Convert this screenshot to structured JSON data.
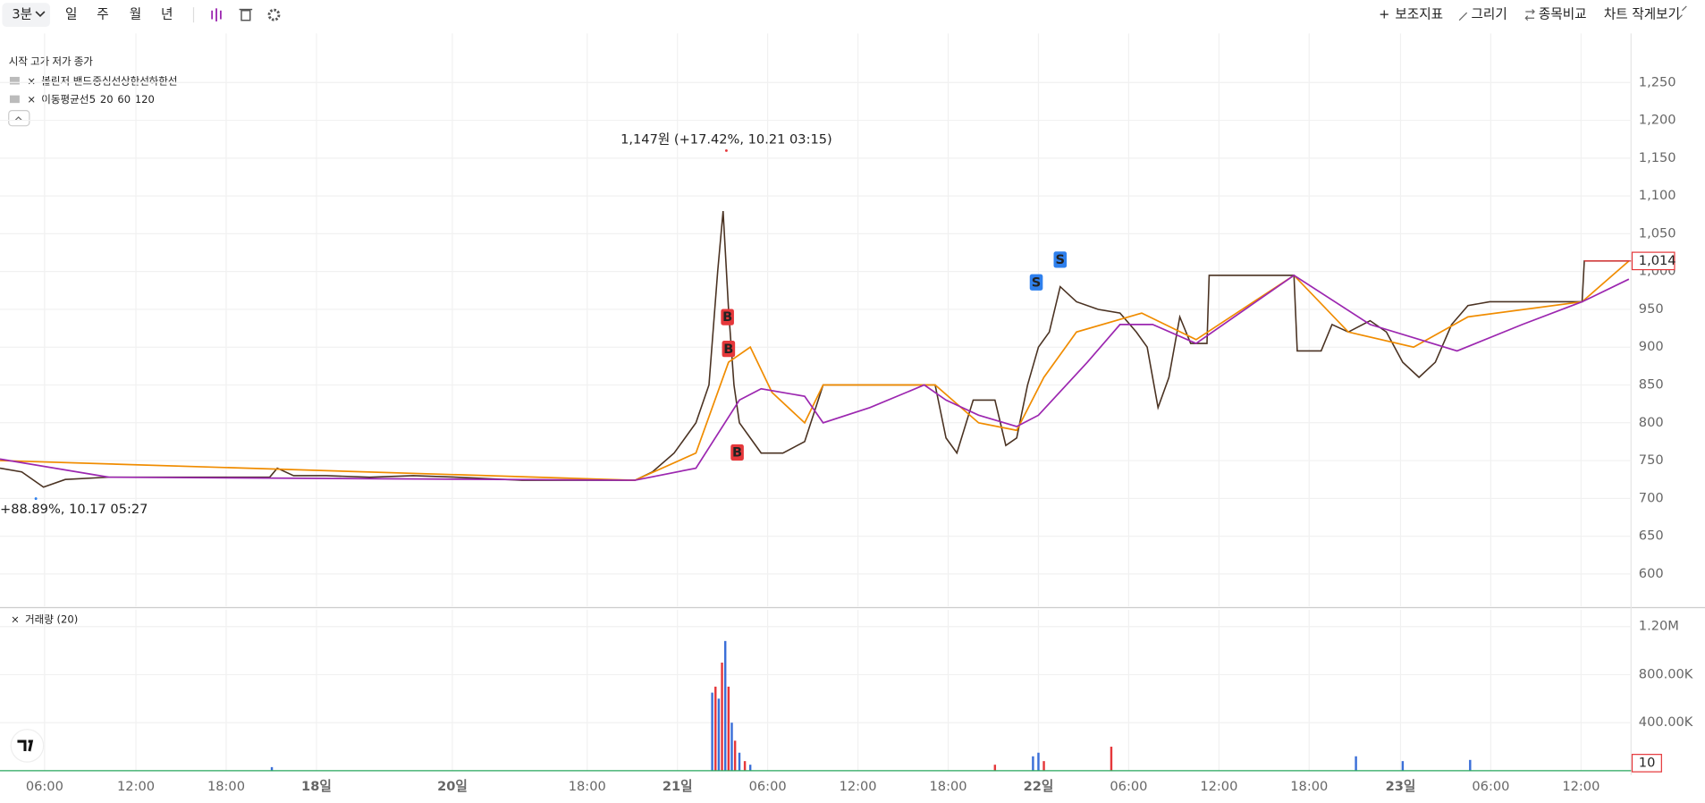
{
  "toolbar": {
    "interval": "3분",
    "periods": [
      "일",
      "주",
      "월",
      "년"
    ],
    "actions": [
      "보조지표",
      "그리기",
      "종목비교",
      "차트 작게보기"
    ]
  },
  "legend": {
    "ohlc": [
      "시작",
      "고가",
      "저가",
      "종가"
    ],
    "bollinger": {
      "name": "볼린저 밴드",
      "items": [
        "중심선",
        "상한선",
        "하한선"
      ],
      "colors": [
        "#26a65b",
        "#f5a623",
        "#f5a623"
      ]
    },
    "ma": {
      "name": "이동평균선",
      "items": [
        "5",
        "20",
        "60",
        "120"
      ],
      "colors": [
        "#26a65b",
        "#e5383b",
        "#f08c00",
        "#9c27b0"
      ]
    }
  },
  "chart_data": [
    {
      "type": "line",
      "xlim": [
        0,
        1500
      ],
      "xticks": [
        {
          "value": 41,
          "label": "06:00"
        },
        {
          "value": 125,
          "label": "12:00"
        },
        {
          "value": 208,
          "label": "18:00"
        },
        {
          "value": 291,
          "label": "18일",
          "major": true
        },
        {
          "value": 416,
          "label": "20일",
          "major": true
        },
        {
          "value": 540,
          "label": "18:00"
        },
        {
          "value": 623,
          "label": "21일",
          "major": true
        },
        {
          "value": 706,
          "label": "06:00"
        },
        {
          "value": 789,
          "label": "12:00"
        },
        {
          "value": 872,
          "label": "18:00"
        },
        {
          "value": 955,
          "label": "22일",
          "major": true
        },
        {
          "value": 1038,
          "label": "06:00"
        },
        {
          "value": 1121,
          "label": "12:00"
        },
        {
          "value": 1204,
          "label": "18:00"
        },
        {
          "value": 1288,
          "label": "23일",
          "major": true
        },
        {
          "value": 1371,
          "label": "06:00"
        },
        {
          "value": 1454,
          "label": "12:00"
        }
      ],
      "ylim": [
        557,
        1315
      ],
      "yticks": [
        600,
        650,
        700,
        750,
        800,
        850,
        900,
        950,
        {
          "value": 1000,
          "label": "1,000"
        },
        {
          "value": 1050,
          "label": "1,050"
        },
        {
          "value": 1100,
          "label": "1,100"
        },
        {
          "value": 1150,
          "label": "1,150"
        },
        {
          "value": 1200,
          "label": "1,200"
        },
        {
          "value": 1250,
          "label": "1,250"
        }
      ],
      "grid": true,
      "series": [
        {
          "name": "종가",
          "color": "#4a3222",
          "x": [
            0,
            20,
            40,
            60,
            100,
            200,
            248,
            255,
            270,
            300,
            340,
            380,
            420,
            480,
            584,
            600,
            620,
            640,
            652,
            660,
            665,
            670,
            675,
            680,
            690,
            700,
            720,
            740,
            757,
            860,
            870,
            880,
            895,
            915,
            925,
            935,
            945,
            955,
            965,
            975,
            990,
            1010,
            1030,
            1045,
            1055,
            1065,
            1075,
            1085,
            1095,
            1110,
            1112,
            1190,
            1193,
            1215,
            1225,
            1240,
            1260,
            1275,
            1290,
            1305,
            1320,
            1335,
            1350,
            1370,
            1390,
            1420,
            1455,
            1457,
            1498
          ],
          "values": [
            740,
            735,
            715,
            725,
            728,
            728,
            728,
            740,
            730,
            730,
            728,
            730,
            728,
            724,
            724,
            735,
            760,
            800,
            850,
            1000,
            1080,
            950,
            850,
            800,
            780,
            760,
            760,
            775,
            850,
            850,
            780,
            760,
            830,
            830,
            770,
            780,
            850,
            900,
            920,
            980,
            960,
            950,
            945,
            920,
            900,
            820,
            860,
            940,
            905,
            905,
            995,
            995,
            895,
            895,
            930,
            920,
            935,
            920,
            880,
            860,
            880,
            930,
            955,
            960,
            960,
            960,
            960,
            1014,
            1014
          ]
        },
        {
          "name": "60",
          "color": "#f08c00",
          "x": [
            0,
            584,
            640,
            670,
            690,
            710,
            740,
            757,
            860,
            900,
            935,
            960,
            990,
            1050,
            1100,
            1190,
            1240,
            1300,
            1350,
            1455,
            1498
          ],
          "values": [
            750,
            724,
            760,
            880,
            900,
            840,
            800,
            850,
            850,
            800,
            790,
            860,
            920,
            945,
            910,
            995,
            920,
            900,
            940,
            960,
            1014
          ]
        },
        {
          "name": "120",
          "color": "#9c27b0",
          "x": [
            0,
            100,
            584,
            640,
            680,
            700,
            740,
            757,
            800,
            850,
            870,
            900,
            935,
            955,
            1000,
            1030,
            1060,
            1100,
            1190,
            1260,
            1340,
            1400,
            1455,
            1498
          ],
          "values": [
            752,
            728,
            724,
            740,
            830,
            845,
            835,
            800,
            820,
            850,
            830,
            810,
            795,
            810,
            880,
            930,
            930,
            905,
            995,
            930,
            895,
            930,
            960,
            990
          ]
        }
      ],
      "markers": [
        {
          "label": "B",
          "x": 669,
          "value": 939,
          "color": "#e5383b"
        },
        {
          "label": "B",
          "x": 670,
          "value": 897,
          "color": "#e5383b"
        },
        {
          "label": "B",
          "x": 678,
          "value": 760,
          "color": "#e5383b"
        },
        {
          "label": "S",
          "x": 953,
          "value": 985,
          "color": "#2f80ed"
        },
        {
          "label": "S",
          "x": 975,
          "value": 1015,
          "color": "#2f80ed"
        }
      ],
      "annotations": [
        {
          "text": "1,147원 (+17.42%, 10.21 03:15)",
          "x": 668,
          "value": 1147,
          "color": "#e5383b"
        },
        {
          "text": "+88.89%, 10.17 05:27",
          "x": 33,
          "value": 704,
          "color": "#2f80ed"
        }
      ],
      "last_price": {
        "value": 1014,
        "label": "1,014"
      }
    },
    {
      "type": "bar",
      "title": "거래량 (20)",
      "ylim": [
        0,
        1340000
      ],
      "yticks": [
        {
          "value": 400000,
          "label": "400.00K"
        },
        {
          "value": 800000,
          "label": "800.00K"
        },
        {
          "value": 1200000,
          "label": "1.20M"
        }
      ],
      "x": [
        250,
        655,
        658,
        661,
        664,
        667,
        670,
        673,
        676,
        680,
        685,
        690,
        915,
        950,
        955,
        960,
        1022,
        1247,
        1290,
        1352
      ],
      "values": [
        30000,
        650000,
        700000,
        600000,
        900000,
        1080000,
        700000,
        400000,
        250000,
        150000,
        80000,
        50000,
        50000,
        120000,
        150000,
        80000,
        200000,
        120000,
        80000,
        90000
      ],
      "colors": [
        "#3b6fd8",
        "#3b6fd8",
        "#e5383b",
        "#3b6fd8",
        "#e5383b",
        "#3b6fd8",
        "#e5383b",
        "#3b6fd8",
        "#e5383b",
        "#3b6fd8",
        "#e5383b",
        "#3b6fd8",
        "#e5383b",
        "#3b6fd8",
        "#3b6fd8",
        "#e5383b",
        "#e5383b",
        "#3b6fd8",
        "#3b6fd8",
        "#3b6fd8"
      ],
      "last_value": 10
    }
  ]
}
